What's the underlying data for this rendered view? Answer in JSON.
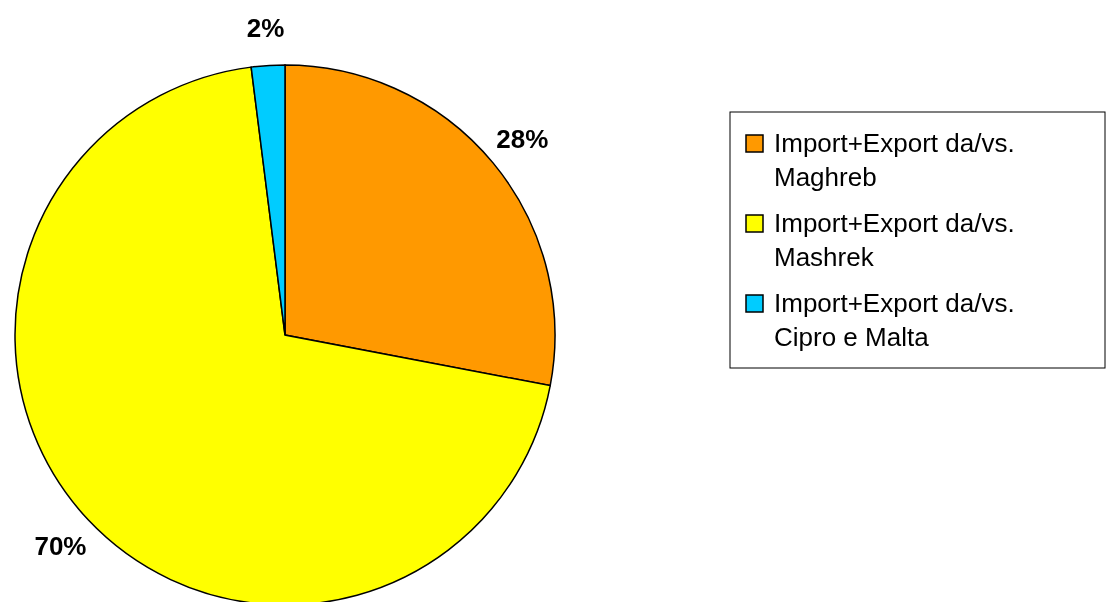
{
  "chart_data": {
    "type": "pie",
    "categories": [
      "Import+Export da/vs. Maghreb",
      "Import+Export da/vs. Mashrek",
      "Import+Export da/vs. Cipro e Malta"
    ],
    "values": [
      28,
      70,
      2
    ],
    "colors": [
      "#ff9900",
      "#ffff00",
      "#00ccff"
    ],
    "value_labels": [
      "28%",
      "70%",
      "2%"
    ],
    "legend": "right"
  }
}
